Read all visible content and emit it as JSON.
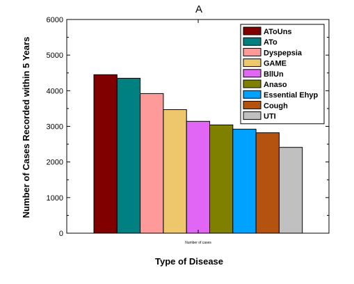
{
  "chart_data": {
    "type": "bar",
    "title": "A",
    "xlabel": "Type of Disease",
    "ylabel": "Number of Cases Recorded within 5 Years",
    "category_label": "Number of cases",
    "ylim": [
      0,
      6000
    ],
    "yticks": [
      0,
      1000,
      2000,
      3000,
      4000,
      5000,
      6000
    ],
    "grid": false,
    "legend_position": "top-right",
    "series": [
      {
        "name": "AToUns",
        "value": 4450,
        "color": "#800000"
      },
      {
        "name": "ATo",
        "value": 4350,
        "color": "#008080"
      },
      {
        "name": "Dyspepsia",
        "value": 3920,
        "color": "#ff9a9a"
      },
      {
        "name": "GAME",
        "value": 3470,
        "color": "#eec66c"
      },
      {
        "name": "BllUn",
        "value": 3140,
        "color": "#e266f5"
      },
      {
        "name": "Anaso",
        "value": 3040,
        "color": "#808000"
      },
      {
        "name": "Essential Ehyp",
        "value": 2920,
        "color": "#00a2ff"
      },
      {
        "name": "Cough",
        "value": 2820,
        "color": "#b4520f"
      },
      {
        "name": "UTI",
        "value": 2410,
        "color": "#c0c0c0"
      }
    ]
  }
}
